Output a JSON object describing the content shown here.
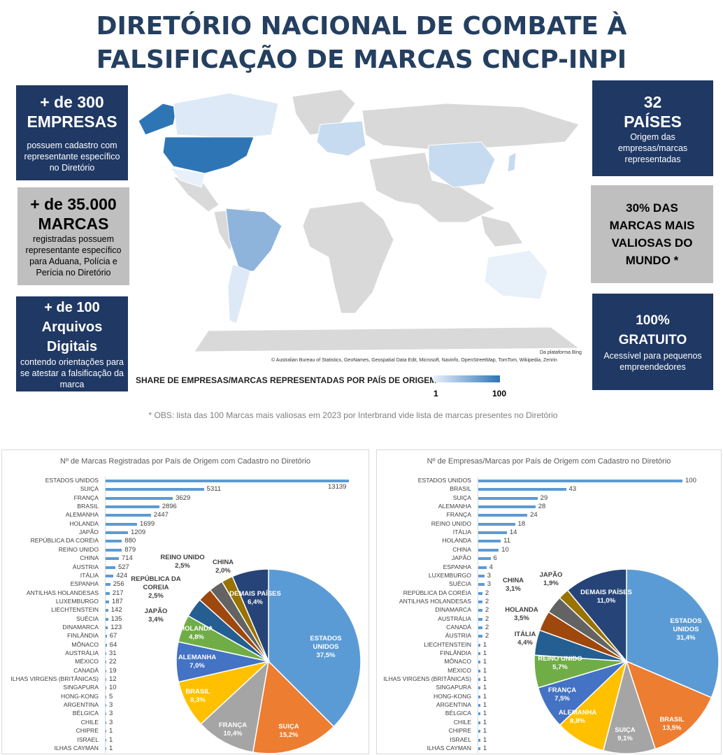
{
  "title": [
    "DIRETÓRIO NACIONAL DE COMBATE À",
    "FALSIFICAÇÃO DE MARCAS CNCP-INPI"
  ],
  "boxes": {
    "empresas": {
      "big": "+ de 300 EMPRESAS",
      "small": "possuem cadastro com representante específico no Diretório"
    },
    "marcas": {
      "big": "+ de 35.000 MARCAS",
      "small": "registradas possuem representante específico para Aduana, Polícia e Perícia no Diretório"
    },
    "arquivos": {
      "big": "+ de 100 Arquivos Digitais",
      "small": "contendo orientações para se atestar a falsificação da marca"
    },
    "paises": {
      "big": "32 PAÍSES",
      "small": "Origem das empresas/marcas representadas"
    },
    "valiosas": {
      "big": "30% DAS MARCAS MAIS VALIOSAS DO MUNDO *"
    },
    "gratuito": {
      "big": "100% GRATUITO",
      "small": "Acessível para pequenos empreendedores"
    }
  },
  "map": {
    "credit1": "Da plataforma Bing",
    "credit2": "© Australian Bureau of Statistics, GeoNames, Geospatial Data Edit, Microsoft, Navinfo, OpenStreetMap, TomTom, Wikipedia, Zenrin",
    "legend_title": "SHARE DE EMPRESAS/MARCAS REPRESENTADAS POR PAÍS DE ORIGEM",
    "legend_min": "1",
    "legend_max": "100",
    "colors": {
      "low": "#e8f0fa",
      "high": "#2e75b6",
      "none": "#d9d9d9"
    }
  },
  "footnote": "* OBS: lista das 100 Marcas mais valiosas em 2023 por Interbrand vide lista de marcas presentes no Diretório",
  "chart_data": [
    {
      "type": "bar",
      "orientation": "horizontal",
      "title": "Nº de Marcas Registradas por País de Origem com Cadastro no Diretório",
      "categories": [
        "ESTADOS UNIDOS",
        "SUIÇA",
        "FRANÇA",
        "BRASIL",
        "ALEMANHA",
        "HOLANDA",
        "JAPÃO",
        "REPÚBLICA DA CORÉIA",
        "REINO UNIDO",
        "CHINA",
        "ÁUSTRIA",
        "ITÁLIA",
        "ESPANHA",
        "ANTILHAS HOLANDESAS",
        "LUXEMBURGO",
        "LIECHTENSTEIN",
        "SUÉCIA",
        "DINAMARCA",
        "FINLÂNDIA",
        "MÔNACO",
        "AUSTRÁLIA",
        "MÉXICO",
        "CANADÁ",
        "ILHAS VIRGENS (BRITÂNICAS)",
        "SINGAPURA",
        "HONG-KONG",
        "ARGENTINA",
        "BÉLGICA",
        "CHILE",
        "CHIPRE",
        "ISRAEL",
        "ILHAS CAYMAN"
      ],
      "values": [
        13139,
        5311,
        3629,
        2896,
        2447,
        1699,
        1209,
        880,
        879,
        714,
        527,
        424,
        256,
        217,
        187,
        142,
        135,
        123,
        67,
        64,
        31,
        22,
        19,
        12,
        10,
        5,
        3,
        3,
        3,
        1,
        1,
        1
      ],
      "color": "#5b9bd5"
    },
    {
      "type": "pie",
      "labels": [
        "ESTADOS UNIDOS",
        "SUIÇA",
        "FRANÇA",
        "BRASIL",
        "ALEMANHA",
        "HOLANDA",
        "JAPÃO",
        "REPÚBLICA DA COREIA",
        "REINO UNIDO",
        "CHINA",
        "DEMAIS PAÍSES"
      ],
      "values": [
        37.5,
        15.2,
        10.4,
        8.3,
        7.0,
        4.8,
        3.4,
        2.5,
        2.5,
        2.0,
        6.4
      ],
      "value_labels": [
        "37,5%",
        "15,2%",
        "10,4%",
        "8,3%",
        "7,0%",
        "4,8%",
        "3,4%",
        "2,5%",
        "2,5%",
        "2,0%",
        "6,4%"
      ],
      "colors": [
        "#5b9bd5",
        "#ed7d31",
        "#a5a5a5",
        "#ffc000",
        "#4472c4",
        "#70ad47",
        "#255e91",
        "#9e480e",
        "#636363",
        "#997300",
        "#264478"
      ]
    },
    {
      "type": "bar",
      "orientation": "horizontal",
      "title": "Nº de Empresas/Marcas por País de Origem com Cadastro no Diretório",
      "categories": [
        "ESTADOS UNIDOS",
        "BRASIL",
        "SUIÇA",
        "ALEMANHA",
        "FRANÇA",
        "REINO UNIDO",
        "ITÁLIA",
        "HOLANDA",
        "CHINA",
        "JAPÃO",
        "ESPANHA",
        "LUXEMBURGO",
        "SUÉCIA",
        "REPÚBLICA DA CORÉIA",
        "ANTILHAS HOLANDESAS",
        "DINAMARCA",
        "AUSTRÁLIA",
        "CANADÁ",
        "ÁUSTRIA",
        "LIECHTENSTEIN",
        "FINLÂNDIA",
        "MÔNACO",
        "MÉXICO",
        "ILHAS VIRGENS (BRITÂNICAS)",
        "SINGAPURA",
        "HONG-KONG",
        "ARGENTINA",
        "BÉLGICA",
        "CHILE",
        "CHIPRE",
        "ISRAEL",
        "ILHAS CAYMAN"
      ],
      "values": [
        100,
        43,
        29,
        28,
        24,
        18,
        14,
        11,
        10,
        6,
        4,
        3,
        3,
        2,
        2,
        2,
        2,
        2,
        2,
        1,
        1,
        1,
        1,
        1,
        1,
        1,
        1,
        1,
        1,
        1,
        1,
        1
      ],
      "color": "#5b9bd5"
    },
    {
      "type": "pie",
      "labels": [
        "ESTADOS UNIDOS",
        "BRASIL",
        "SUIÇA",
        "ALEMANHA",
        "FRANÇA",
        "REINO UNIDO",
        "ITÁLIA",
        "HOLANDA",
        "CHINA",
        "JAPÃO",
        "DEMAIS PAÍSES"
      ],
      "values": [
        31.4,
        13.5,
        9.1,
        8.8,
        7.5,
        5.7,
        4.4,
        3.5,
        3.1,
        1.9,
        11.0
      ],
      "value_labels": [
        "31,4%",
        "13,5%",
        "9,1%",
        "8,8%",
        "7,5%",
        "5,7%",
        "4,4%",
        "3,5%",
        "3,1%",
        "1,9%",
        "11,0%"
      ],
      "colors": [
        "#5b9bd5",
        "#ed7d31",
        "#a5a5a5",
        "#ffc000",
        "#4472c4",
        "#70ad47",
        "#255e91",
        "#9e480e",
        "#636363",
        "#997300",
        "#264478"
      ]
    }
  ]
}
